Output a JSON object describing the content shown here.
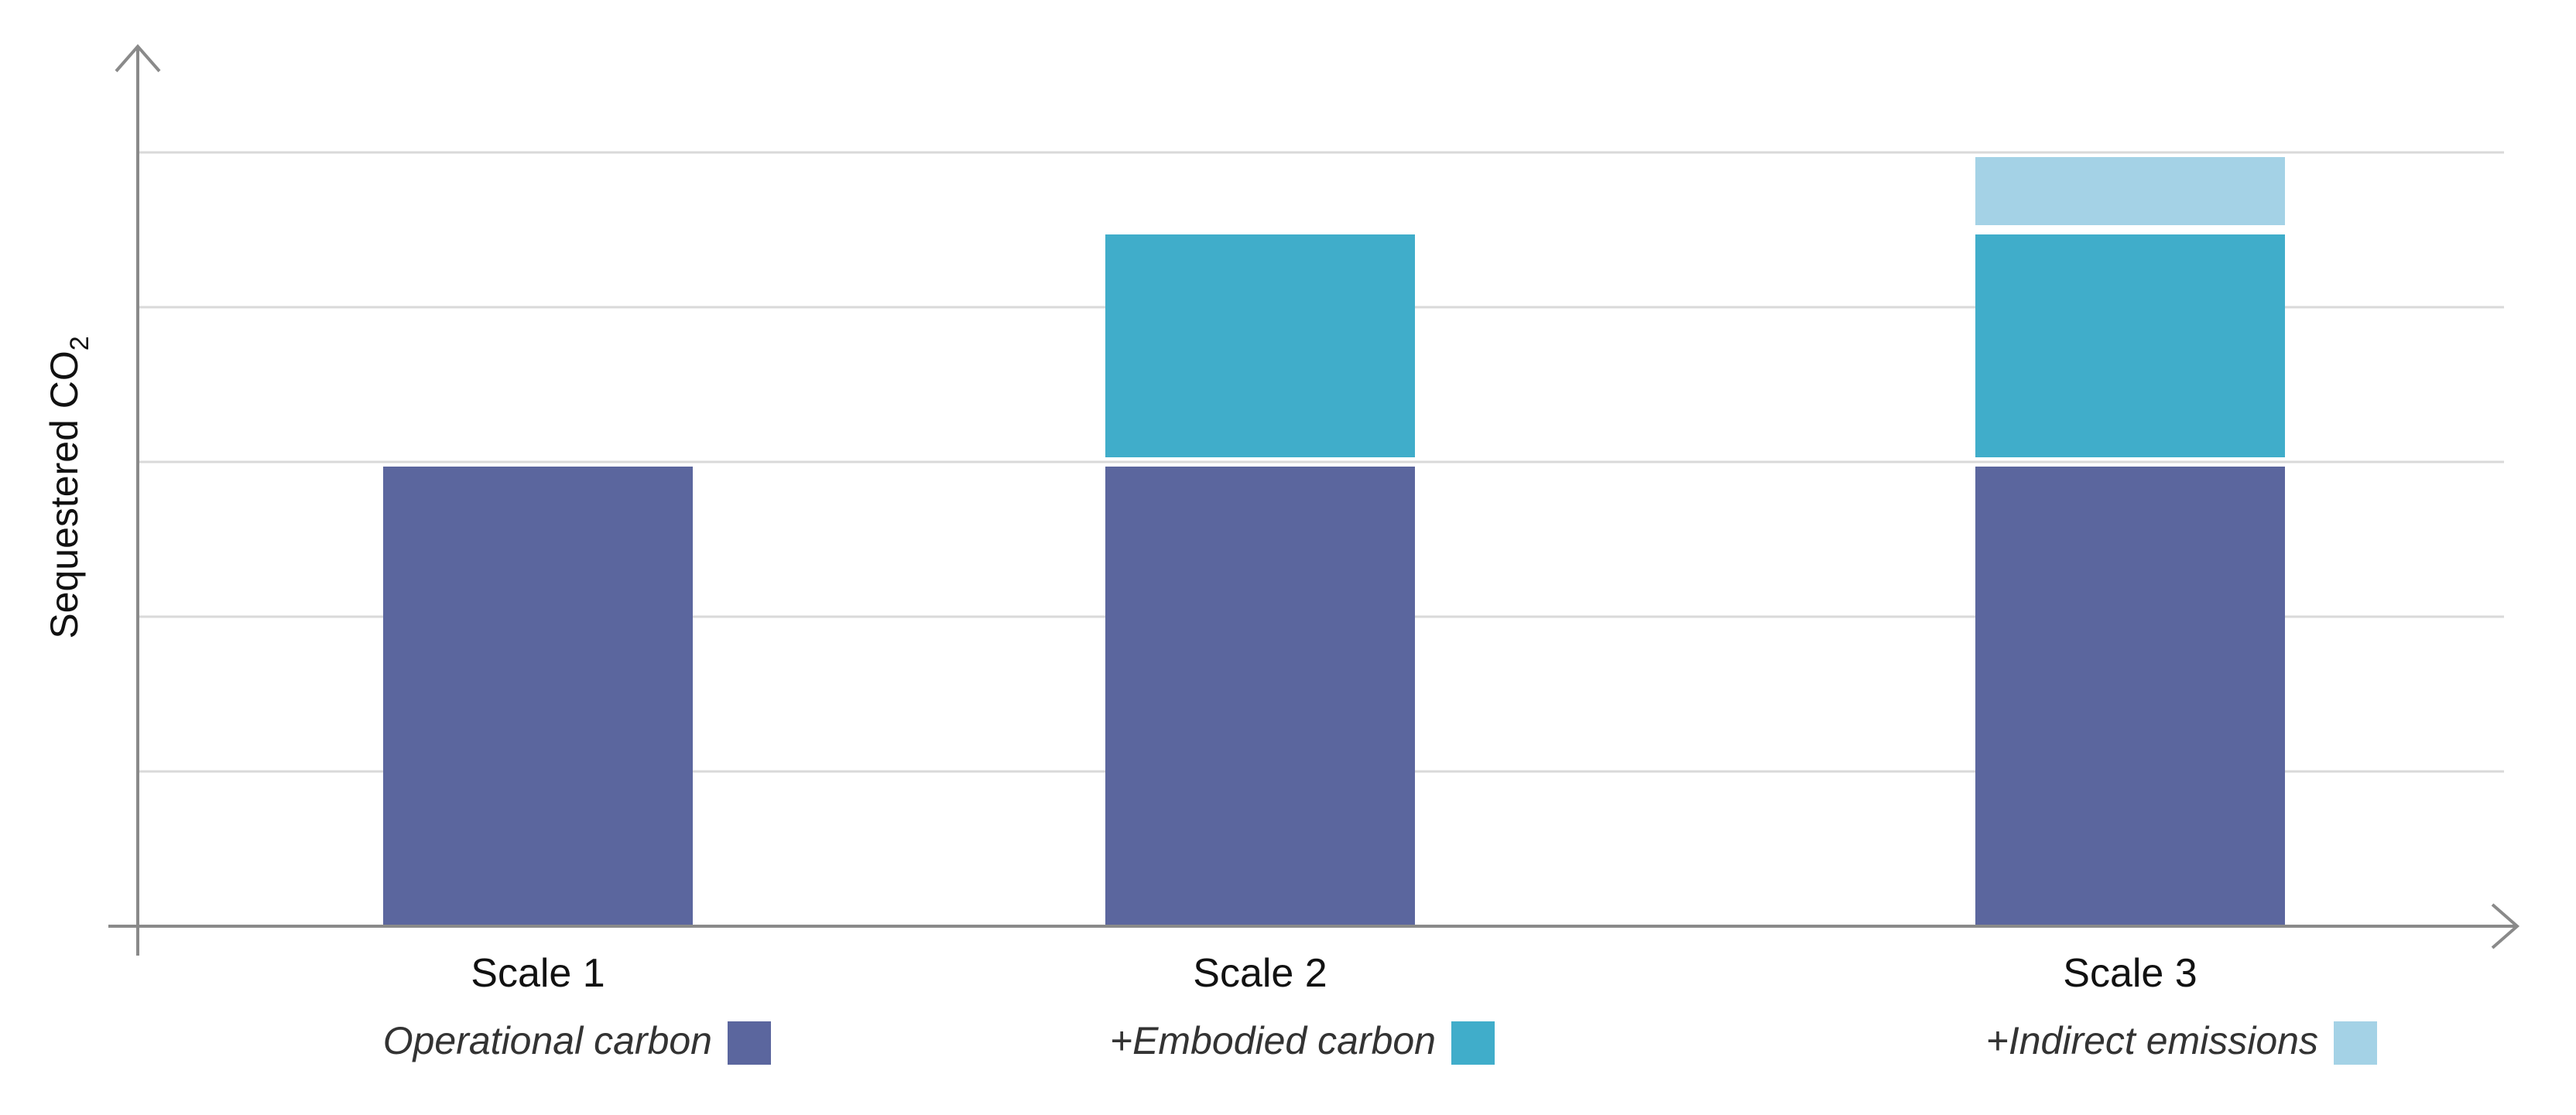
{
  "colors": {
    "operational": "#5b669e",
    "embodied": "#40adca",
    "indirect": "#a4d2e6",
    "grid": "#d9d9d9",
    "axis": "#8a8a8a"
  },
  "chart_data": {
    "type": "bar",
    "stacked": true,
    "title": "",
    "xlabel": "",
    "ylabel": {
      "main": "Sequestered CO",
      "subscript": "2"
    },
    "categories": [
      "Scale 1",
      "Scale 2",
      "Scale 3"
    ],
    "series": [
      {
        "name": "Operational carbon",
        "values": [
          3.0,
          3.0,
          3.0
        ],
        "color": "#5b669e"
      },
      {
        "name": "Embodied carbon",
        "values": [
          0,
          1.5,
          1.5
        ],
        "color": "#40adca"
      },
      {
        "name": "Indirect emissions",
        "values": [
          0,
          0,
          0.5
        ],
        "color": "#a4d2e6"
      }
    ],
    "ylim": [
      0,
      5
    ],
    "y_ticks": [
      0,
      1,
      2,
      3,
      4,
      5
    ],
    "y_tick_labels_shown": false,
    "grid": true,
    "legend_placement": "below-categories",
    "legend_entries": [
      {
        "label": "Operational carbon",
        "color": "#5b669e"
      },
      {
        "label": "+Embodied carbon",
        "color": "#40adca"
      },
      {
        "label": "+Indirect emissions",
        "color": "#a4d2e6"
      }
    ]
  }
}
